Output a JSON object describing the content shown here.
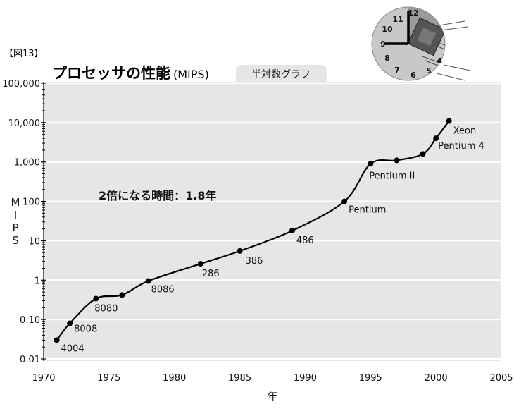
{
  "figure_label": "【図13】",
  "title": "プロセッサの性能",
  "title_unit": "(MIPS)",
  "tab_label": "半対数グラフ",
  "annotation": "2倍になる時間：1.8年",
  "clock_numbers": [
    "12",
    "11",
    "10",
    "9",
    "8",
    "7",
    "6",
    "5",
    "4"
  ],
  "chart_data": {
    "type": "line",
    "xlabel": "年",
    "ylabel": "MIPS",
    "xlim": [
      1970,
      2005
    ],
    "ylim": [
      0.01,
      100000
    ],
    "yscale": "log",
    "grid": true,
    "x_ticks": [
      1970,
      1975,
      1980,
      1985,
      1990,
      1995,
      2000,
      2005
    ],
    "y_ticks": [
      {
        "value": 0.01,
        "label": "0.01"
      },
      {
        "value": 0.1,
        "label": "0.10"
      },
      {
        "value": 1,
        "label": "1"
      },
      {
        "value": 10,
        "label": "10"
      },
      {
        "value": 100,
        "label": "100"
      },
      {
        "value": 1000,
        "label": "1,000"
      },
      {
        "value": 10000,
        "label": "10,000"
      },
      {
        "value": 100000,
        "label": "100,000"
      }
    ],
    "points": [
      {
        "x": 1971,
        "y": 0.03,
        "label": "4004"
      },
      {
        "x": 1972,
        "y": 0.08,
        "label": "8008"
      },
      {
        "x": 1974,
        "y": 0.34,
        "label": "8080"
      },
      {
        "x": 1976,
        "y": 0.42,
        "label": ""
      },
      {
        "x": 1978,
        "y": 0.95,
        "label": "8086"
      },
      {
        "x": 1982,
        "y": 2.6,
        "label": "286"
      },
      {
        "x": 1985,
        "y": 5.5,
        "label": "386"
      },
      {
        "x": 1989,
        "y": 18,
        "label": "486"
      },
      {
        "x": 1993,
        "y": 100,
        "label": "Pentium"
      },
      {
        "x": 1995,
        "y": 900,
        "label": "Pentium II"
      },
      {
        "x": 1997,
        "y": 1100,
        "label": ""
      },
      {
        "x": 1999,
        "y": 1600,
        "label": ""
      },
      {
        "x": 2000,
        "y": 4000,
        "label": "Pentium 4"
      },
      {
        "x": 2001,
        "y": 11000,
        "label": "Xeon"
      }
    ]
  }
}
